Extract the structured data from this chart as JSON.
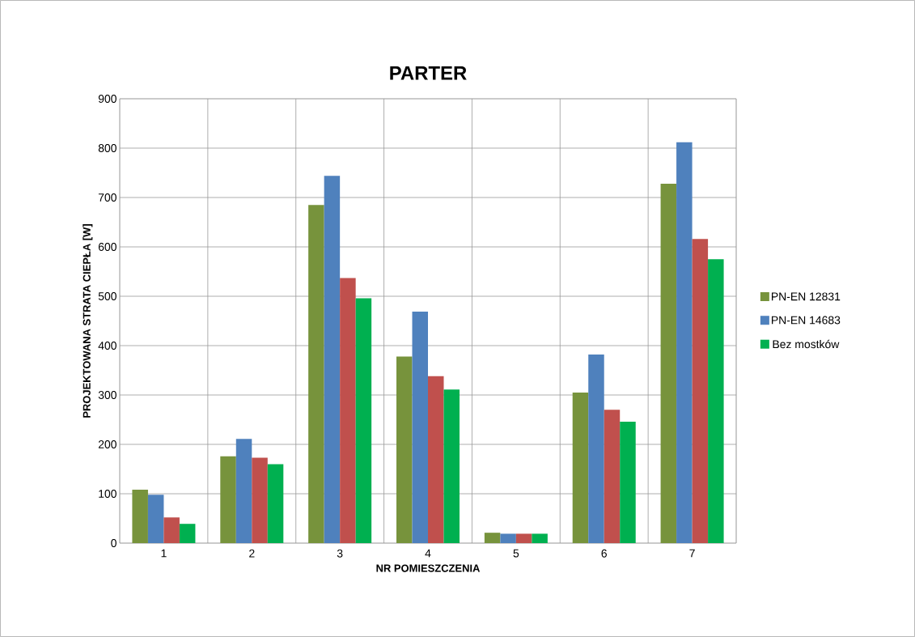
{
  "chart_data": {
    "type": "bar",
    "title": "PARTER",
    "xlabel": "NR POMIESZCZENIA",
    "ylabel": "PROJEKTOWANA STRATA CIEPŁA [W]",
    "categories": [
      "1",
      "2",
      "3",
      "4",
      "5",
      "6",
      "7"
    ],
    "series": [
      {
        "name": "PN-EN 12831",
        "color": "#77933c",
        "values": [
          108,
          176,
          685,
          378,
          21,
          305,
          728
        ]
      },
      {
        "name": "PN-EN 14683",
        "color": "#4f81bd",
        "values": [
          98,
          211,
          744,
          469,
          19,
          382,
          812
        ]
      },
      {
        "color": "#c0504d",
        "values": [
          52,
          173,
          537,
          338,
          19,
          270,
          616
        ]
      },
      {
        "name": "Bez mostków",
        "color": "#00b050",
        "values": [
          39,
          160,
          496,
          311,
          19,
          246,
          575
        ]
      }
    ],
    "ylim": [
      0,
      900
    ],
    "yticks": [
      0,
      100,
      200,
      300,
      400,
      500,
      600,
      700,
      800,
      900
    ],
    "grid": true,
    "legend": "right"
  }
}
